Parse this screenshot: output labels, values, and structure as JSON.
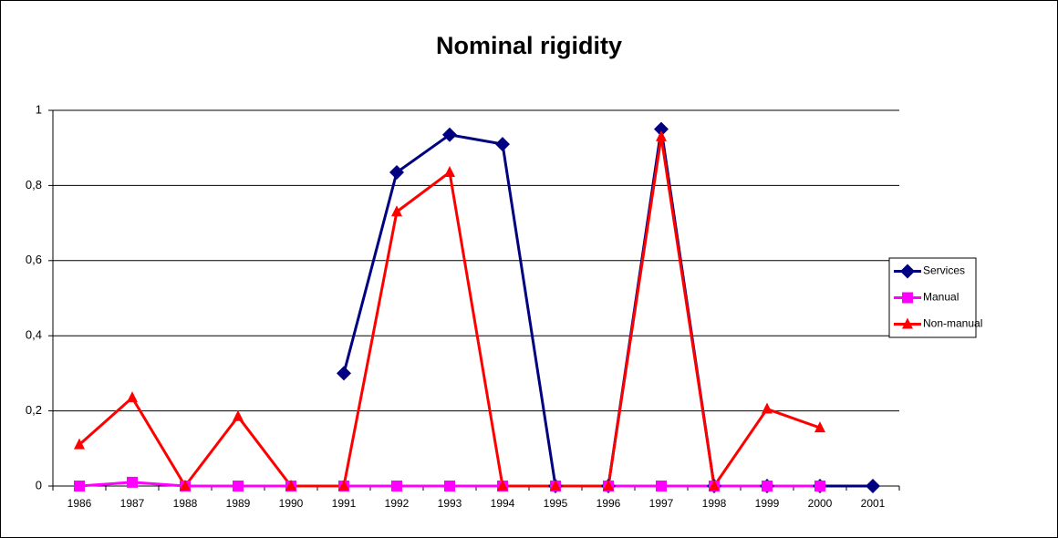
{
  "chart_data": {
    "type": "line",
    "title": "Nominal rigidity",
    "categories": [
      "1986",
      "1987",
      "1988",
      "1989",
      "1990",
      "1991",
      "1992",
      "1993",
      "1994",
      "1995",
      "1996",
      "1997",
      "1998",
      "1999",
      "2000",
      "2001"
    ],
    "series": [
      {
        "name": "Services",
        "color": "#000080",
        "marker": "diamond",
        "values": [
          null,
          null,
          null,
          null,
          null,
          0.3,
          0.835,
          0.935,
          0.91,
          0,
          0,
          0.95,
          0,
          0,
          0,
          0
        ]
      },
      {
        "name": "Manual",
        "color": "#ff00ff",
        "marker": "square",
        "values": [
          0,
          0.01,
          0,
          0,
          0,
          0,
          0,
          0,
          0,
          0,
          0,
          0,
          0,
          0,
          0,
          null
        ]
      },
      {
        "name": "Non-manual",
        "color": "#ff0000",
        "marker": "triangle",
        "values": [
          0.11,
          0.235,
          0,
          0.185,
          0,
          0,
          0.73,
          0.835,
          0,
          0,
          0,
          0.93,
          0,
          0.205,
          0.155,
          null
        ]
      }
    ],
    "ylim": [
      0,
      1
    ],
    "yticks": [
      0,
      {
        "value": 0.2,
        "label": "0,2"
      },
      {
        "value": 0.4,
        "label": "0,4"
      },
      {
        "value": 0.6,
        "label": "0,6"
      },
      {
        "value": 0.8,
        "label": "0,8"
      },
      1
    ],
    "grid": true,
    "legend": "right"
  }
}
